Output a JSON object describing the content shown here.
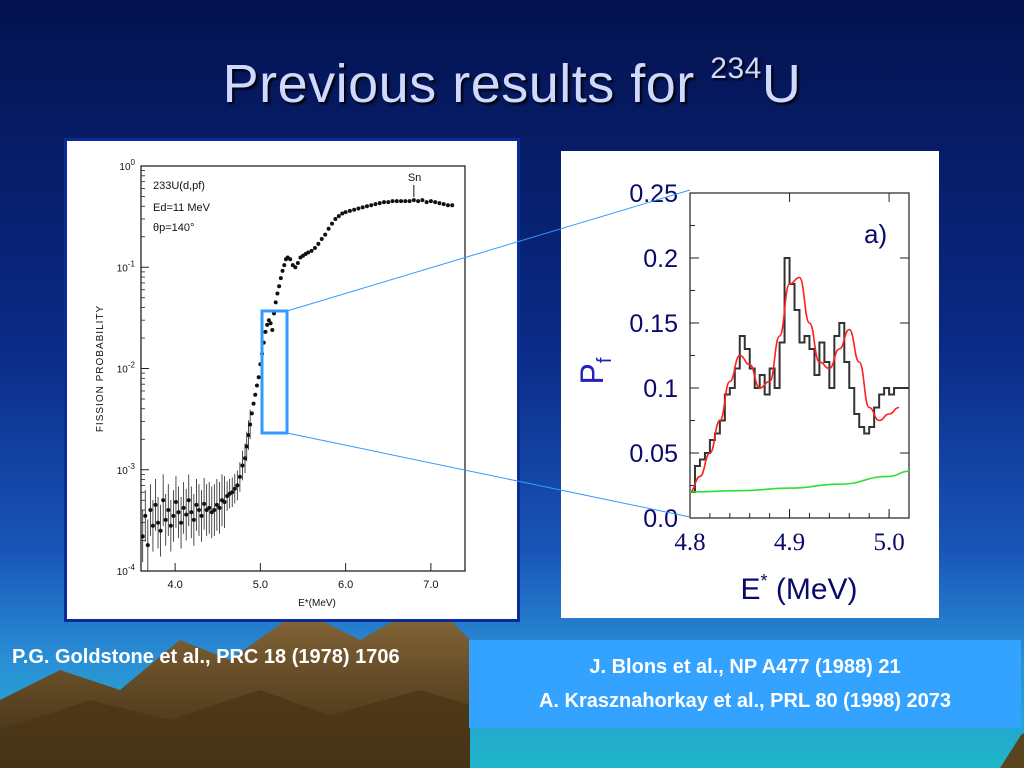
{
  "slide": {
    "title_text": "Previous results for ",
    "title_superscript": "234",
    "title_suffix": "U",
    "caption_left": "P.G. Goldstone et al., PRC 18 (1978) 1706",
    "caption_right_line1": "J. Blons et al., NP A477 (1988) 21",
    "caption_right_line2": "A. Krasznahorkay et al., PRL 80 (1998) 2073",
    "colors": {
      "title": "#cfd8ff",
      "caption_box": "#33a3ff",
      "zoom_box": "#3399ff"
    }
  },
  "chart_data": [
    {
      "type": "scatter",
      "y_scale": "log",
      "xlabel": "E*(MeV)",
      "ylabel": "FISSION PROBABILITY",
      "xlim": [
        3.6,
        7.4
      ],
      "ylim": [
        0.0001,
        1
      ],
      "x_ticks": [
        "4.0",
        "5.0",
        "6.0",
        "7.0"
      ],
      "y_ticks": [
        "10-4",
        "10-3",
        "10-2",
        "10-1",
        "100"
      ],
      "annotations": {
        "reaction": "233U(d,pf)",
        "energy": "Ed=11 MeV",
        "angle": "θp=140°",
        "marker": "Sn"
      },
      "points": [
        [
          3.62,
          0.00022
        ],
        [
          3.65,
          0.00035
        ],
        [
          3.68,
          0.00018
        ],
        [
          3.71,
          0.0004
        ],
        [
          3.74,
          0.00028
        ],
        [
          3.77,
          0.00045
        ],
        [
          3.8,
          0.0003
        ],
        [
          3.83,
          0.00025
        ],
        [
          3.86,
          0.0005
        ],
        [
          3.89,
          0.00032
        ],
        [
          3.92,
          0.0004
        ],
        [
          3.95,
          0.00028
        ],
        [
          3.98,
          0.00035
        ],
        [
          4.01,
          0.00048
        ],
        [
          4.04,
          0.00038
        ],
        [
          4.07,
          0.0003
        ],
        [
          4.1,
          0.00042
        ],
        [
          4.13,
          0.00036
        ],
        [
          4.16,
          0.0005
        ],
        [
          4.19,
          0.00038
        ],
        [
          4.22,
          0.00032
        ],
        [
          4.25,
          0.00045
        ],
        [
          4.28,
          0.0004
        ],
        [
          4.31,
          0.00035
        ],
        [
          4.34,
          0.00046
        ],
        [
          4.37,
          0.0004
        ],
        [
          4.4,
          0.00042
        ],
        [
          4.43,
          0.00038
        ],
        [
          4.46,
          0.0004
        ],
        [
          4.49,
          0.00045
        ],
        [
          4.52,
          0.00042
        ],
        [
          4.55,
          0.0005
        ],
        [
          4.58,
          0.00048
        ],
        [
          4.61,
          0.00055
        ],
        [
          4.64,
          0.00058
        ],
        [
          4.67,
          0.0006
        ],
        [
          4.7,
          0.00065
        ],
        [
          4.73,
          0.0007
        ],
        [
          4.76,
          0.00085
        ],
        [
          4.79,
          0.0011
        ],
        [
          4.82,
          0.0013
        ],
        [
          4.84,
          0.0017
        ],
        [
          4.86,
          0.0022
        ],
        [
          4.88,
          0.0028
        ],
        [
          4.9,
          0.0036
        ],
        [
          4.92,
          0.0045
        ],
        [
          4.94,
          0.0055
        ],
        [
          4.96,
          0.0068
        ],
        [
          4.98,
          0.0082
        ],
        [
          5.0,
          0.011
        ],
        [
          5.02,
          0.014
        ],
        [
          5.04,
          0.018
        ],
        [
          5.06,
          0.023
        ],
        [
          5.08,
          0.027
        ],
        [
          5.1,
          0.03
        ],
        [
          5.12,
          0.028
        ],
        [
          5.14,
          0.024
        ],
        [
          5.16,
          0.035
        ],
        [
          5.18,
          0.045
        ],
        [
          5.2,
          0.055
        ],
        [
          5.22,
          0.065
        ],
        [
          5.24,
          0.078
        ],
        [
          5.26,
          0.092
        ],
        [
          5.28,
          0.105
        ],
        [
          5.3,
          0.12
        ],
        [
          5.32,
          0.125
        ],
        [
          5.35,
          0.12
        ],
        [
          5.38,
          0.105
        ],
        [
          5.41,
          0.1
        ],
        [
          5.44,
          0.11
        ],
        [
          5.47,
          0.125
        ],
        [
          5.5,
          0.13
        ],
        [
          5.53,
          0.135
        ],
        [
          5.56,
          0.14
        ],
        [
          5.6,
          0.145
        ],
        [
          5.64,
          0.155
        ],
        [
          5.68,
          0.17
        ],
        [
          5.72,
          0.19
        ],
        [
          5.76,
          0.21
        ],
        [
          5.8,
          0.24
        ],
        [
          5.84,
          0.27
        ],
        [
          5.88,
          0.3
        ],
        [
          5.92,
          0.32
        ],
        [
          5.96,
          0.34
        ],
        [
          6.0,
          0.35
        ],
        [
          6.05,
          0.36
        ],
        [
          6.1,
          0.37
        ],
        [
          6.15,
          0.38
        ],
        [
          6.2,
          0.39
        ],
        [
          6.25,
          0.4
        ],
        [
          6.3,
          0.41
        ],
        [
          6.35,
          0.42
        ],
        [
          6.4,
          0.43
        ],
        [
          6.45,
          0.44
        ],
        [
          6.5,
          0.44
        ],
        [
          6.55,
          0.45
        ],
        [
          6.6,
          0.45
        ],
        [
          6.65,
          0.45
        ],
        [
          6.7,
          0.45
        ],
        [
          6.75,
          0.45
        ],
        [
          6.8,
          0.46
        ],
        [
          6.85,
          0.45
        ],
        [
          6.9,
          0.46
        ],
        [
          6.95,
          0.44
        ],
        [
          7.0,
          0.45
        ],
        [
          7.05,
          0.44
        ],
        [
          7.1,
          0.43
        ],
        [
          7.15,
          0.42
        ],
        [
          7.2,
          0.41
        ],
        [
          7.25,
          0.41
        ]
      ]
    },
    {
      "type": "line",
      "panel_label": "a)",
      "xlabel": "E* (MeV)",
      "ylabel": "Pf",
      "xlim": [
        4.8,
        5.02
      ],
      "ylim": [
        0,
        0.25
      ],
      "x_ticks": [
        "4.8",
        "4.9",
        "5.0"
      ],
      "y_ticks": [
        "0.0",
        "0.05",
        "0.1",
        "0.15",
        "0.2",
        "0.25"
      ],
      "series": [
        {
          "kind": "step",
          "color": "#333333",
          "x": [
            4.8,
            4.805,
            4.81,
            4.815,
            4.82,
            4.825,
            4.83,
            4.835,
            4.84,
            4.845,
            4.85,
            4.855,
            4.86,
            4.865,
            4.87,
            4.875,
            4.88,
            4.885,
            4.89,
            4.895,
            4.9,
            4.905,
            4.91,
            4.915,
            4.92,
            4.925,
            4.93,
            4.935,
            4.94,
            4.945,
            4.95,
            4.955,
            4.96,
            4.965,
            4.97,
            4.975,
            4.98,
            4.985,
            4.99,
            4.995,
            5.0,
            5.005,
            5.01,
            5.015
          ],
          "values": [
            0.02,
            0.04,
            0.045,
            0.05,
            0.06,
            0.065,
            0.075,
            0.095,
            0.1,
            0.115,
            0.14,
            0.13,
            0.115,
            0.1,
            0.11,
            0.095,
            0.115,
            0.1,
            0.135,
            0.2,
            0.18,
            0.16,
            0.135,
            0.14,
            0.13,
            0.11,
            0.135,
            0.12,
            0.1,
            0.14,
            0.15,
            0.12,
            0.1,
            0.08,
            0.07,
            0.065,
            0.07,
            0.085,
            0.095,
            0.1,
            0.095,
            0.1,
            0.1,
            0.1
          ]
        },
        {
          "kind": "smooth",
          "color": "#ff2020",
          "x": [
            4.8,
            4.81,
            4.82,
            4.83,
            4.84,
            4.85,
            4.86,
            4.87,
            4.88,
            4.89,
            4.9,
            4.91,
            4.92,
            4.93,
            4.94,
            4.95,
            4.96,
            4.97,
            4.98,
            4.99,
            5.0,
            5.01
          ],
          "values": [
            0.02,
            0.032,
            0.05,
            0.075,
            0.105,
            0.125,
            0.118,
            0.1,
            0.105,
            0.14,
            0.18,
            0.185,
            0.15,
            0.12,
            0.115,
            0.13,
            0.145,
            0.12,
            0.085,
            0.075,
            0.08,
            0.085
          ]
        },
        {
          "kind": "smooth",
          "color": "#33dd33",
          "x": [
            4.8,
            4.85,
            4.9,
            4.95,
            5.0,
            5.02
          ],
          "values": [
            0.02,
            0.021,
            0.023,
            0.026,
            0.032,
            0.036
          ]
        }
      ]
    }
  ]
}
